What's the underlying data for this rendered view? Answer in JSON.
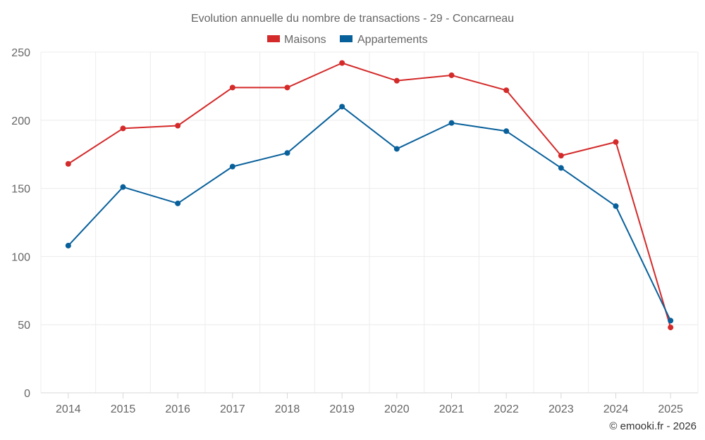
{
  "chart_data": {
    "type": "line",
    "title": "Evolution annuelle du nombre de transactions - 29 - Concarneau",
    "categories": [
      "2014",
      "2015",
      "2016",
      "2017",
      "2018",
      "2019",
      "2020",
      "2021",
      "2022",
      "2023",
      "2024",
      "2025"
    ],
    "series": [
      {
        "name": "Maisons",
        "color": "#d42a2a",
        "values": [
          168,
          194,
          196,
          224,
          224,
          242,
          229,
          233,
          222,
          174,
          184,
          48
        ]
      },
      {
        "name": "Appartements",
        "color": "#08609b",
        "values": [
          108,
          151,
          139,
          166,
          176,
          210,
          179,
          198,
          192,
          165,
          137,
          53
        ]
      }
    ],
    "ylim": [
      0,
      250
    ],
    "yticks": [
      "0",
      "50",
      "100",
      "150",
      "200",
      "250"
    ],
    "xlabel": "",
    "ylabel": "",
    "grid": true,
    "legend": "top-center"
  },
  "credit": "© emooki.fr - 2026"
}
